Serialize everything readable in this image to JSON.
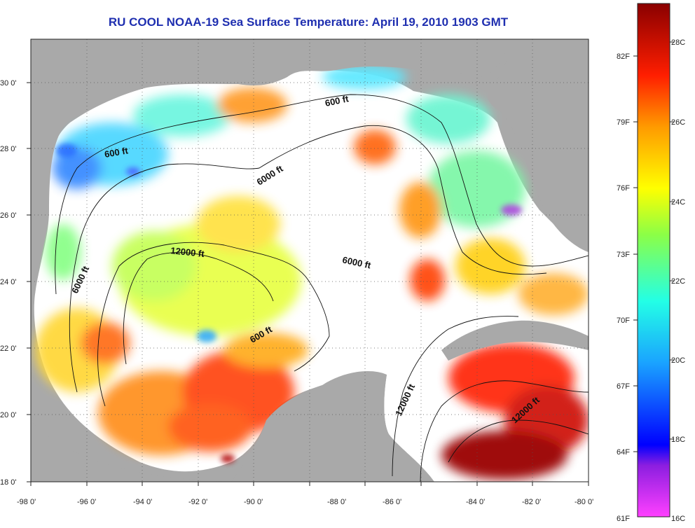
{
  "title": "RU COOL  NOAA-19  Sea Surface Temperature:  April 19, 2010 1903 GMT",
  "axes": {
    "lon_ticks": [
      "-98 0'",
      "-96 0'",
      "-94 0'",
      "-92 0'",
      "-90 0'",
      "-88 0'",
      "-86 0'",
      "-84 0'",
      "-82 0'",
      "-80 0'"
    ],
    "lat_ticks": [
      "18 0'",
      "20 0'",
      "22 0'",
      "24 0'",
      "26 0'",
      "28 0'",
      "30 0'"
    ]
  },
  "contour_labels": [
    "600 ft",
    "600 ft",
    "6000 ft",
    "6000 ft",
    "6000 ft",
    "12000 ft",
    "600 ft",
    "12000 ft",
    "12000 ft"
  ],
  "colorbar": {
    "fahrenheit_labels": [
      "82F",
      "79F",
      "76F",
      "73F",
      "70F",
      "67F",
      "64F",
      "61F"
    ],
    "celsius_labels": [
      "28C",
      "26C",
      "24C",
      "22C",
      "20C",
      "18C",
      "16C"
    ]
  },
  "colors": {
    "land": "#a9a9a9",
    "title": "#1f2fb0",
    "no_data": "#ffffff"
  }
}
